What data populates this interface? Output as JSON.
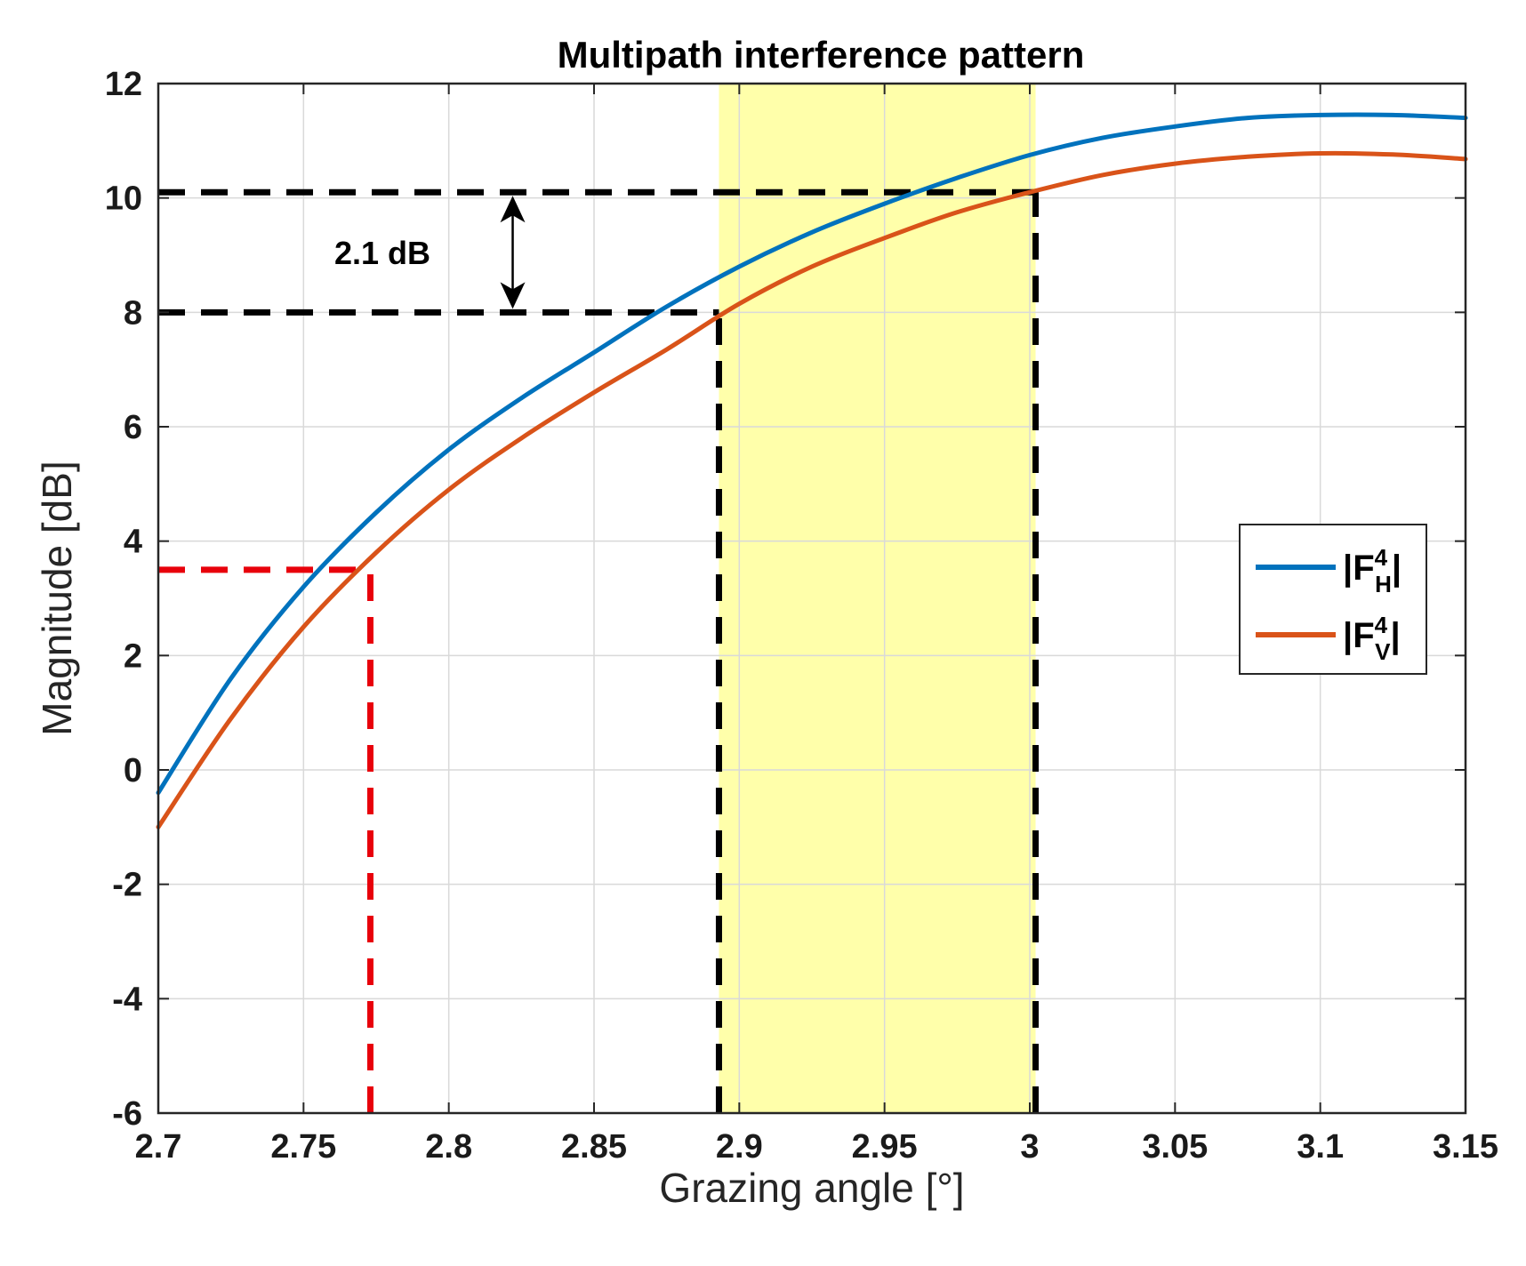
{
  "chart_data": {
    "type": "line",
    "title": "Multipath interference pattern",
    "xlabel": "Grazing angle [°]",
    "ylabel": "Magnitude [dB]",
    "xlim": [
      2.7,
      3.15
    ],
    "ylim": [
      -6,
      12
    ],
    "xticks": [
      2.7,
      2.75,
      2.8,
      2.85,
      2.9,
      2.95,
      3.0,
      3.05,
      3.1,
      3.15
    ],
    "xtick_labels": [
      "2.7",
      "2.75",
      "2.8",
      "2.85",
      "2.9",
      "2.95",
      "3",
      "3.05",
      "3.1",
      "3.15"
    ],
    "yticks": [
      -6,
      -4,
      -2,
      0,
      2,
      4,
      6,
      8,
      10,
      12
    ],
    "ytick_labels": [
      "-6",
      "-4",
      "-2",
      "0",
      "2",
      "4",
      "6",
      "8",
      "10",
      "12"
    ],
    "grid": true,
    "series": [
      {
        "name": "|F_H^4|",
        "label_main": "|F",
        "label_sup": "4",
        "label_sub": "H",
        "label_end": "|",
        "color": "#0072BD",
        "x": [
          2.7,
          2.725,
          2.75,
          2.775,
          2.8,
          2.825,
          2.85,
          2.875,
          2.9,
          2.925,
          2.95,
          2.975,
          3.0,
          3.025,
          3.05,
          3.075,
          3.1,
          3.125,
          3.15
        ],
        "y": [
          -0.4,
          1.6,
          3.2,
          4.5,
          5.6,
          6.5,
          7.3,
          8.1,
          8.8,
          9.4,
          9.9,
          10.35,
          10.75,
          11.05,
          11.25,
          11.4,
          11.45,
          11.45,
          11.4
        ]
      },
      {
        "name": "|F_V^4|",
        "label_main": "|F",
        "label_sup": "4",
        "label_sub": "V",
        "label_end": "|",
        "color": "#D95319",
        "x": [
          2.7,
          2.725,
          2.75,
          2.775,
          2.8,
          2.825,
          2.85,
          2.875,
          2.9,
          2.925,
          2.95,
          2.975,
          3.0,
          3.025,
          3.05,
          3.075,
          3.1,
          3.125,
          3.15
        ],
        "y": [
          -1.0,
          0.9,
          2.5,
          3.8,
          4.9,
          5.8,
          6.6,
          7.35,
          8.15,
          8.8,
          9.3,
          9.75,
          10.1,
          10.4,
          10.6,
          10.72,
          10.78,
          10.76,
          10.68
        ]
      }
    ],
    "highlight_band": {
      "x_start": 2.893,
      "x_end": 3.002,
      "color": "#FFFFAA"
    },
    "reference_lines": [
      {
        "name": "black-h-10",
        "color": "#000000",
        "points": [
          [
            2.7,
            10.1
          ],
          [
            3.002,
            10.1
          ]
        ]
      },
      {
        "name": "black-h-8",
        "color": "#000000",
        "points": [
          [
            2.7,
            8.0
          ],
          [
            2.893,
            8.0
          ]
        ]
      },
      {
        "name": "black-v-2893",
        "color": "#000000",
        "points": [
          [
            2.893,
            -6
          ],
          [
            2.893,
            8.0
          ]
        ]
      },
      {
        "name": "black-v-3002",
        "color": "#000000",
        "points": [
          [
            3.002,
            -6
          ],
          [
            3.002,
            10.1
          ]
        ]
      },
      {
        "name": "red-h-35",
        "color": "#E8000B",
        "points": [
          [
            2.7,
            3.5
          ],
          [
            2.773,
            3.5
          ]
        ]
      },
      {
        "name": "red-v-2773",
        "color": "#E8000B",
        "points": [
          [
            2.773,
            -6
          ],
          [
            2.773,
            3.5
          ]
        ]
      }
    ],
    "annotations": [
      {
        "text": "2.1 dB",
        "x": 2.79,
        "y": 9.05,
        "arrow_x": 2.822,
        "arrow_y_from": 8.0,
        "arrow_y_to": 10.1
      }
    ],
    "legend_position": "right"
  }
}
